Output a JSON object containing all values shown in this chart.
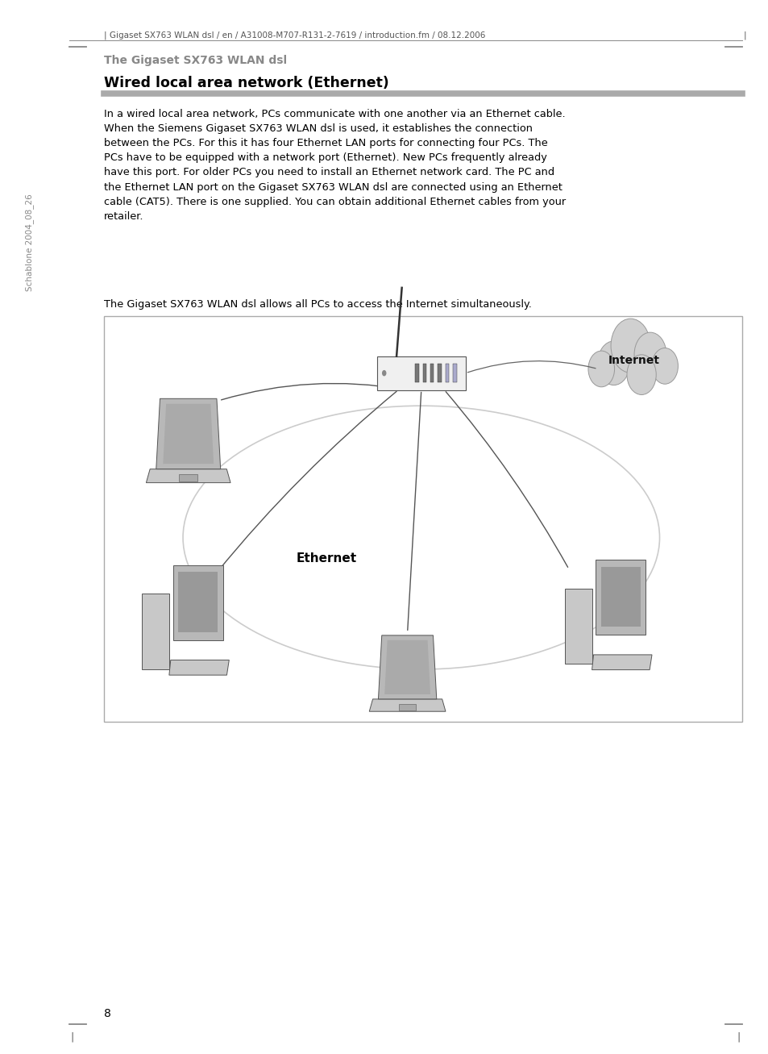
{
  "page_background": "#ffffff",
  "header_text": "| Gigaset SX763 WLAN dsl / en / A31008-M707-R131-2-7619 / introduction.fm / 08.12.2006",
  "header_right_bar": "|",
  "header_color": "#555555",
  "rule_color": "#888888",
  "section_label": "The Gigaset SX763 WLAN dsl",
  "section_label_color": "#888888",
  "heading": "Wired local area network (Ethernet)",
  "heading_color": "#000000",
  "heading_rule_color": "#aaaaaa",
  "body_text_1": "In a wired local area network, PCs communicate with one another via an Ethernet cable.\nWhen the Siemens Gigaset SX763 WLAN dsl is used, it establishes the connection\nbetween the PCs. For this it has four Ethernet LAN ports for connecting four PCs. The\nPCs have to be equipped with a network port (Ethernet). New PCs frequently already\nhave this port. For older PCs you need to install an Ethernet network card. The PC and\nthe Ethernet LAN port on the Gigaset SX763 WLAN dsl are connected using an Ethernet\ncable (CAT5). There is one supplied. You can obtain additional Ethernet cables from your\nretailer.",
  "body_text_2": "The Gigaset SX763 WLAN dsl allows all PCs to access the Internet simultaneously.",
  "body_text_color": "#000000",
  "side_label": "Schablone 2004_08_26",
  "side_label_color": "#888888",
  "ethernet_label": "Ethernet",
  "internet_label": "Internet",
  "page_number": "8",
  "lm": 0.09,
  "rm": 0.965,
  "cl": 0.135
}
